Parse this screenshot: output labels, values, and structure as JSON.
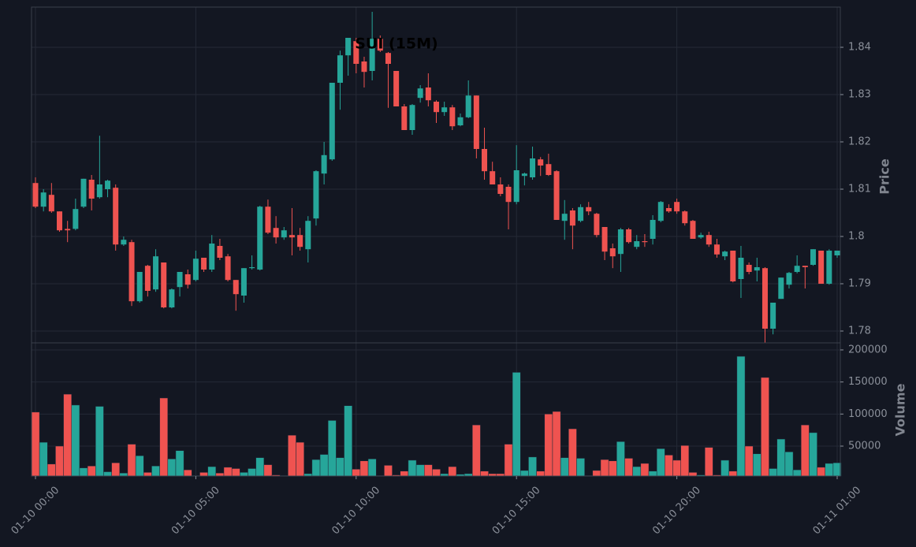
{
  "chart_data": {
    "type": "candlestick",
    "title": "SUI (15M)",
    "ylabel": "Price",
    "y2label": "Volume",
    "x": [
      "01-10 00:00",
      "01-10 00:15",
      "01-10 00:30",
      "01-10 00:45",
      "01-10 01:00",
      "01-10 01:15",
      "01-10 01:30",
      "01-10 01:45",
      "01-10 02:00",
      "01-10 02:15",
      "01-10 02:30",
      "01-10 02:45",
      "01-10 03:00",
      "01-10 03:15",
      "01-10 03:30",
      "01-10 03:45",
      "01-10 04:00",
      "01-10 04:15",
      "01-10 04:30",
      "01-10 04:45",
      "01-10 05:00",
      "01-10 05:15",
      "01-10 05:30",
      "01-10 05:45",
      "01-10 06:00",
      "01-10 06:15",
      "01-10 06:30",
      "01-10 06:45",
      "01-10 07:00",
      "01-10 07:15",
      "01-10 07:30",
      "01-10 07:45",
      "01-10 08:00",
      "01-10 08:15",
      "01-10 08:30",
      "01-10 08:45",
      "01-10 09:00",
      "01-10 09:15",
      "01-10 09:30",
      "01-10 09:45",
      "01-10 10:00",
      "01-10 10:15",
      "01-10 10:30",
      "01-10 10:45",
      "01-10 11:00",
      "01-10 11:15",
      "01-10 11:30",
      "01-10 11:45",
      "01-10 12:00",
      "01-10 12:15",
      "01-10 12:30",
      "01-10 12:45",
      "01-10 13:00",
      "01-10 13:15",
      "01-10 13:30",
      "01-10 13:45",
      "01-10 14:00",
      "01-10 14:15",
      "01-10 14:30",
      "01-10 14:45",
      "01-10 15:00",
      "01-10 15:15",
      "01-10 15:30",
      "01-10 15:45",
      "01-10 16:00",
      "01-10 16:15",
      "01-10 16:30",
      "01-10 16:45",
      "01-10 17:00",
      "01-10 17:15",
      "01-10 17:30",
      "01-10 17:45",
      "01-10 18:00",
      "01-10 18:15",
      "01-10 18:30",
      "01-10 18:45",
      "01-10 19:00",
      "01-10 19:15",
      "01-10 19:30",
      "01-10 19:45",
      "01-10 20:00",
      "01-10 20:15",
      "01-10 20:30",
      "01-10 20:45",
      "01-10 21:00",
      "01-10 21:15",
      "01-10 21:30",
      "01-10 21:45",
      "01-10 22:00",
      "01-10 22:15",
      "01-10 22:30",
      "01-10 22:45",
      "01-10 23:00",
      "01-10 23:15",
      "01-10 23:30",
      "01-10 23:45",
      "01-11 00:00",
      "01-11 00:15",
      "01-11 00:30",
      "01-11 00:45",
      "01-11 01:00"
    ],
    "open": [
      1.8113,
      1.8063,
      1.8088,
      1.8053,
      1.8016,
      1.8016,
      1.8063,
      1.812,
      1.8083,
      1.81,
      1.8103,
      1.7983,
      1.7988,
      1.7863,
      1.7938,
      1.7888,
      1.7945,
      1.785,
      1.7893,
      1.792,
      1.7908,
      1.7955,
      1.793,
      1.798,
      1.7958,
      1.7908,
      1.7875,
      1.7933,
      1.793,
      1.8063,
      1.8018,
      1.7998,
      1.8003,
      1.8003,
      1.7973,
      1.8038,
      1.8133,
      1.8163,
      1.8325,
      1.8383,
      1.8413,
      1.837,
      1.835,
      1.8418,
      1.8388,
      1.835,
      1.8275,
      1.8225,
      1.8293,
      1.8315,
      1.8285,
      1.8263,
      1.8273,
      1.8235,
      1.8252,
      1.8298,
      1.8185,
      1.8138,
      1.811,
      1.8105,
      1.8073,
      1.8128,
      1.8125,
      1.8163,
      1.8153,
      1.8138,
      1.8033,
      1.8055,
      1.8033,
      1.8062,
      1.8048,
      1.802,
      1.7975,
      1.7963,
      1.8015,
      1.7978,
      1.799,
      1.7995,
      1.8033,
      1.806,
      1.8073,
      1.8053,
      1.8033,
      1.7998,
      1.8003,
      1.7983,
      1.7958,
      1.797,
      1.791,
      1.794,
      1.7928,
      1.7933,
      1.7805,
      1.7868,
      1.7898,
      1.7925,
      1.7938,
      1.794,
      1.797,
      1.79,
      1.796
    ],
    "high": [
      1.8125,
      1.81,
      1.8113,
      1.8053,
      1.8033,
      1.808,
      1.8122,
      1.813,
      1.8213,
      1.812,
      1.811,
      1.8,
      1.7993,
      1.7925,
      1.794,
      1.7973,
      1.7945,
      1.789,
      1.7925,
      1.793,
      1.797,
      1.7955,
      1.8003,
      1.7995,
      1.7963,
      1.7908,
      1.7933,
      1.796,
      1.8065,
      1.8078,
      1.8043,
      1.802,
      1.806,
      1.8018,
      1.8043,
      1.814,
      1.82,
      1.8325,
      1.8393,
      1.842,
      1.842,
      1.838,
      1.8475,
      1.8425,
      1.839,
      1.835,
      1.828,
      1.828,
      1.832,
      1.8345,
      1.8288,
      1.8285,
      1.8278,
      1.826,
      1.833,
      1.8298,
      1.823,
      1.8158,
      1.8125,
      1.811,
      1.8193,
      1.8135,
      1.819,
      1.8168,
      1.8175,
      1.814,
      1.8077,
      1.806,
      1.8068,
      1.8073,
      1.805,
      1.802,
      1.7985,
      1.8018,
      1.8018,
      1.8003,
      1.8005,
      1.8045,
      1.8075,
      1.8068,
      1.808,
      1.8055,
      1.8035,
      1.8008,
      1.801,
      1.7995,
      1.797,
      1.797,
      1.798,
      1.7945,
      1.7955,
      1.7935,
      1.786,
      1.7913,
      1.7925,
      1.796,
      1.7938,
      1.7973,
      1.797,
      1.7973,
      1.797
    ],
    "low": [
      1.806,
      1.8053,
      1.805,
      1.801,
      1.7988,
      1.8013,
      1.806,
      1.8055,
      1.808,
      1.8083,
      1.797,
      1.798,
      1.7853,
      1.786,
      1.7873,
      1.7883,
      1.7848,
      1.7848,
      1.7873,
      1.789,
      1.7905,
      1.7925,
      1.7925,
      1.795,
      1.7905,
      1.7843,
      1.786,
      1.793,
      1.7928,
      1.8005,
      1.7985,
      1.7993,
      1.796,
      1.797,
      1.7945,
      1.8023,
      1.811,
      1.816,
      1.8268,
      1.834,
      1.8345,
      1.8315,
      1.833,
      1.839,
      1.8272,
      1.8275,
      1.8225,
      1.8215,
      1.8283,
      1.8275,
      1.824,
      1.8255,
      1.8225,
      1.8233,
      1.825,
      1.8165,
      1.812,
      1.811,
      1.8085,
      1.8015,
      1.8068,
      1.8108,
      1.812,
      1.8128,
      1.8128,
      1.8035,
      1.7993,
      1.7973,
      1.803,
      1.8045,
      1.7998,
      1.795,
      1.7933,
      1.7925,
      1.7985,
      1.7973,
      1.7978,
      1.7983,
      1.803,
      1.805,
      1.8048,
      1.8023,
      1.7995,
      1.7995,
      1.7978,
      1.7955,
      1.795,
      1.7903,
      1.787,
      1.792,
      1.7905,
      1.7775,
      1.7793,
      1.7868,
      1.789,
      1.7922,
      1.789,
      1.7938,
      1.79,
      1.7898,
      1.7955
    ],
    "close": [
      1.8063,
      1.8093,
      1.8053,
      1.8013,
      1.8013,
      1.8058,
      1.8122,
      1.808,
      1.811,
      1.8118,
      1.7983,
      1.7993,
      1.7863,
      1.7925,
      1.7885,
      1.7958,
      1.785,
      1.7888,
      1.7925,
      1.7898,
      1.7953,
      1.793,
      1.7985,
      1.7955,
      1.7908,
      1.7878,
      1.7933,
      1.7935,
      1.8063,
      1.8008,
      1.7998,
      1.8013,
      1.7998,
      1.7978,
      1.8033,
      1.8138,
      1.8172,
      1.8325,
      1.8383,
      1.842,
      1.8365,
      1.8348,
      1.8418,
      1.8393,
      1.8365,
      1.8275,
      1.8225,
      1.8278,
      1.8313,
      1.8288,
      1.8263,
      1.8273,
      1.8233,
      1.8252,
      1.8298,
      1.8185,
      1.8138,
      1.811,
      1.809,
      1.8073,
      1.814,
      1.8133,
      1.8165,
      1.815,
      1.813,
      1.8035,
      1.8048,
      1.8023,
      1.8062,
      1.8053,
      1.8003,
      1.7968,
      1.7958,
      1.8015,
      1.7988,
      1.799,
      1.7988,
      1.8035,
      1.8073,
      1.8053,
      1.8053,
      1.8028,
      1.7995,
      1.8003,
      1.7983,
      1.7962,
      1.7968,
      1.7905,
      1.7955,
      1.7925,
      1.7935,
      1.7805,
      1.786,
      1.7913,
      1.7923,
      1.7938,
      1.7935,
      1.7973,
      1.79,
      1.797,
      1.797
    ],
    "volume": [
      103000,
      56000,
      22000,
      50000,
      131000,
      114000,
      16000,
      19000,
      112000,
      10000,
      24000,
      8000,
      53000,
      35000,
      9000,
      19000,
      125000,
      30000,
      43000,
      13000,
      4000,
      9000,
      18000,
      8000,
      17000,
      15000,
      9000,
      15000,
      32000,
      21000,
      5000,
      4000,
      67000,
      56000,
      7000,
      29000,
      37000,
      90000,
      32000,
      113000,
      14000,
      27000,
      30000,
      4000,
      20000,
      5000,
      11000,
      28000,
      21000,
      21000,
      14000,
      7000,
      18000,
      6000,
      7000,
      83000,
      11000,
      7000,
      7000,
      53000,
      165000,
      12000,
      33000,
      11000,
      100000,
      104000,
      32000,
      77000,
      31000,
      4000,
      12000,
      29000,
      27000,
      57000,
      31000,
      18000,
      23000,
      11000,
      46000,
      36000,
      28000,
      51000,
      9000,
      5000,
      48000,
      5000,
      28000,
      11000,
      190000,
      50000,
      38000,
      157000,
      15000,
      61000,
      41000,
      13000,
      83000,
      71000,
      17000,
      23000,
      24000
    ],
    "xticks": [
      "01-10 00:00",
      "01-10 05:00",
      "01-10 10:00",
      "01-10 15:00",
      "01-10 20:00",
      "01-11 01:00"
    ],
    "ylim": [
      1.7775,
      1.8485
    ],
    "yticks": [
      1.78,
      1.79,
      1.8,
      1.81,
      1.82,
      1.83,
      1.84
    ],
    "y2lim": [
      3300,
      211000
    ],
    "y2ticks": [
      50000,
      100000,
      150000,
      200000
    ],
    "up_color": "#26a69a",
    "down_color": "#ef5350",
    "grid": true
  }
}
